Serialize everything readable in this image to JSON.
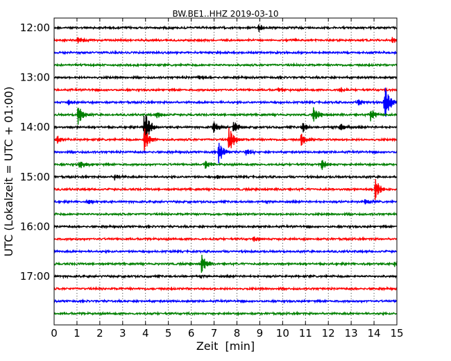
{
  "chart_data": {
    "type": "line",
    "title": "BW.BE1..HHZ 2019-03-10",
    "xlabel": "Zeit  [min]",
    "ylabel": "UTC (Lokalzeit = UTC + 01:00)",
    "xlim": [
      0,
      15
    ],
    "x_ticks": [
      0,
      1,
      2,
      3,
      4,
      5,
      6,
      7,
      8,
      9,
      10,
      11,
      12,
      13,
      14,
      15
    ],
    "x_tick_labels": [
      "0",
      "1",
      "2",
      "3",
      "4",
      "5",
      "6",
      "7",
      "8",
      "9",
      "10",
      "11",
      "12",
      "13",
      "14",
      "15"
    ],
    "y_tick_labels": [
      "12:00",
      "13:00",
      "14:00",
      "15:00",
      "16:00",
      "17:00"
    ],
    "grid": {
      "x": true,
      "y": false,
      "style": "dotted"
    },
    "trace_colors": [
      "#000000",
      "#ff0000",
      "#0000ff",
      "#008000"
    ],
    "series": [
      {
        "start": "12:00",
        "color": "#000000",
        "events": [
          {
            "t": 8.95,
            "amp": 0.5
          }
        ]
      },
      {
        "start": "12:15",
        "color": "#ff0000",
        "events": [
          {
            "t": 1.05,
            "amp": 0.5
          },
          {
            "t": 14.8,
            "amp": 0.4
          }
        ]
      },
      {
        "start": "12:30",
        "color": "#0000ff",
        "events": []
      },
      {
        "start": "12:45",
        "color": "#008000",
        "events": []
      },
      {
        "start": "13:00",
        "color": "#000000",
        "events": [
          {
            "t": 6.3,
            "amp": 0.3
          }
        ]
      },
      {
        "start": "13:15",
        "color": "#ff0000",
        "events": [
          {
            "t": 9.8,
            "amp": 0.4
          },
          {
            "t": 12.5,
            "amp": 0.4
          }
        ]
      },
      {
        "start": "13:30",
        "color": "#0000ff",
        "events": [
          {
            "t": 0.6,
            "amp": 0.4
          },
          {
            "t": 13.3,
            "amp": 0.5
          },
          {
            "t": 14.45,
            "amp": 2.7
          }
        ]
      },
      {
        "start": "13:45",
        "color": "#008000",
        "events": [
          {
            "t": 1.05,
            "amp": 1.4
          },
          {
            "t": 4.5,
            "amp": 0.5
          },
          {
            "t": 11.35,
            "amp": 1.1
          },
          {
            "t": 13.85,
            "amp": 0.8
          }
        ]
      },
      {
        "start": "14:00",
        "color": "#000000",
        "events": [
          {
            "t": 3.95,
            "amp": 2.6
          },
          {
            "t": 6.95,
            "amp": 0.9
          },
          {
            "t": 7.85,
            "amp": 0.9
          },
          {
            "t": 10.85,
            "amp": 0.8
          },
          {
            "t": 12.5,
            "amp": 0.7
          }
        ]
      },
      {
        "start": "14:15",
        "color": "#ff0000",
        "events": [
          {
            "t": 0.1,
            "amp": 0.6
          },
          {
            "t": 3.95,
            "amp": 1.6
          },
          {
            "t": 7.65,
            "amp": 1.7
          },
          {
            "t": 10.8,
            "amp": 0.9
          }
        ]
      },
      {
        "start": "14:30",
        "color": "#0000ff",
        "events": [
          {
            "t": 7.2,
            "amp": 1.4
          },
          {
            "t": 8.4,
            "amp": 0.5
          }
        ]
      },
      {
        "start": "14:45",
        "color": "#008000",
        "events": [
          {
            "t": 1.1,
            "amp": 0.7
          },
          {
            "t": 6.6,
            "amp": 0.6
          },
          {
            "t": 11.7,
            "amp": 0.8
          }
        ]
      },
      {
        "start": "15:00",
        "color": "#000000",
        "events": [
          {
            "t": 2.65,
            "amp": 0.4
          },
          {
            "t": 7.1,
            "amp": 0.3
          }
        ]
      },
      {
        "start": "15:15",
        "color": "#ff0000",
        "events": [
          {
            "t": 14.05,
            "amp": 1.5
          }
        ]
      },
      {
        "start": "15:30",
        "color": "#0000ff",
        "events": [
          {
            "t": 1.45,
            "amp": 0.4
          },
          {
            "t": 13.6,
            "amp": 0.4
          }
        ]
      },
      {
        "start": "15:45",
        "color": "#008000",
        "events": []
      },
      {
        "start": "16:00",
        "color": "#000000",
        "events": []
      },
      {
        "start": "16:15",
        "color": "#ff0000",
        "events": [
          {
            "t": 8.75,
            "amp": 0.4
          }
        ]
      },
      {
        "start": "16:30",
        "color": "#0000ff",
        "events": []
      },
      {
        "start": "16:45",
        "color": "#008000",
        "events": [
          {
            "t": 6.45,
            "amp": 1.2
          },
          {
            "t": 14.9,
            "amp": 0.4
          }
        ]
      },
      {
        "start": "17:00",
        "color": "#000000",
        "events": []
      },
      {
        "start": "17:15",
        "color": "#ff0000",
        "events": []
      },
      {
        "start": "17:30",
        "color": "#0000ff",
        "events": []
      },
      {
        "start": "17:45",
        "color": "#008000",
        "events": []
      }
    ]
  }
}
